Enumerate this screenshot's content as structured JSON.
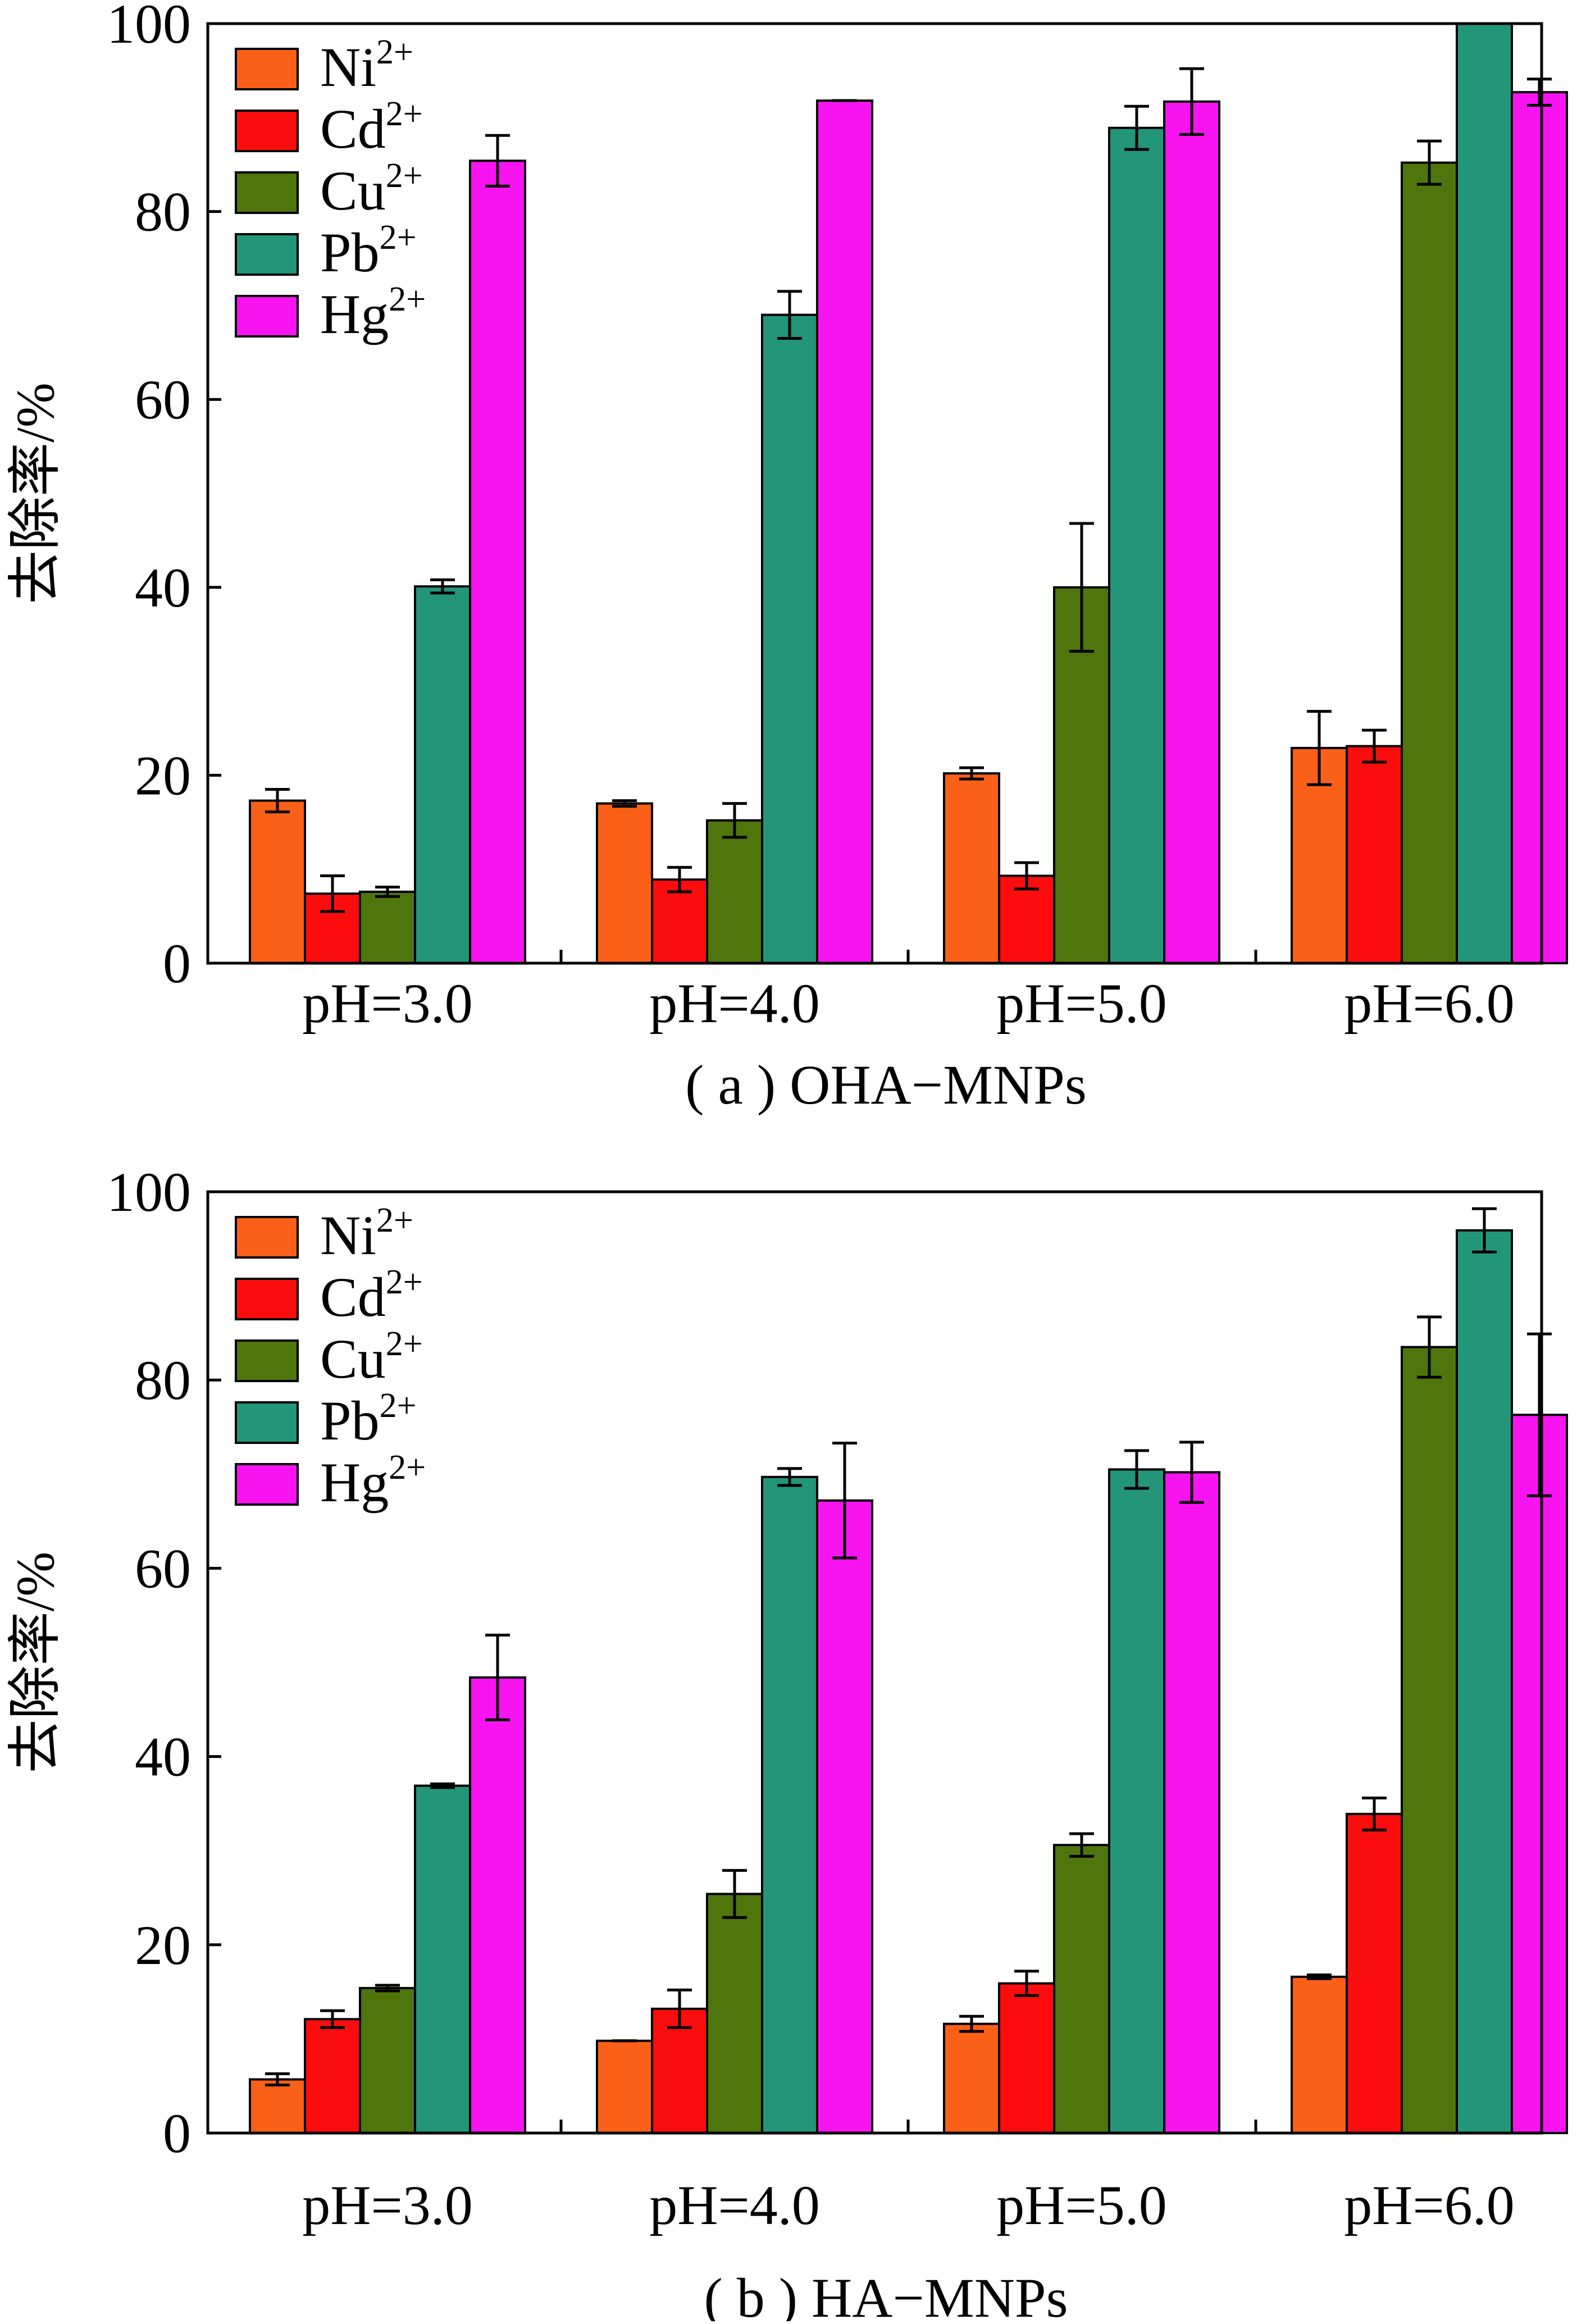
{
  "colors": {
    "Ni": "#fa6017",
    "Cd": "#fb0d0d",
    "Cu": "#4f760c",
    "Pb": "#23967a",
    "Hg": "#f714f0",
    "axis": "#000000"
  },
  "chart_data": [
    {
      "type": "bar",
      "caption": "( a ) OHA−MNPs",
      "ylabel": "去除率/%",
      "ylim": [
        0,
        100
      ],
      "yticks": [
        "0",
        "20",
        "40",
        "60",
        "80",
        "100"
      ],
      "categories": [
        "pH=3.0",
        "pH=4.0",
        "pH=5.0",
        "pH=6.0"
      ],
      "legend_position": "top-left",
      "series": [
        {
          "name": "Ni",
          "sup": "2+",
          "values": [
            17.3,
            17.0,
            20.2,
            22.9
          ],
          "errors": [
            1.2,
            0.3,
            0.6,
            3.9
          ]
        },
        {
          "name": "Cd",
          "sup": "2+",
          "values": [
            7.4,
            8.9,
            9.3,
            23.1
          ],
          "errors": [
            1.9,
            1.3,
            1.4,
            1.7
          ]
        },
        {
          "name": "Cu",
          "sup": "2+",
          "values": [
            7.6,
            15.2,
            40.0,
            85.2
          ],
          "errors": [
            0.5,
            1.8,
            6.8,
            2.3
          ]
        },
        {
          "name": "Pb",
          "sup": "2+",
          "values": [
            40.1,
            69.0,
            88.9,
            100.0
          ],
          "errors": [
            0.7,
            2.5,
            2.3,
            0.0
          ]
        },
        {
          "name": "Hg",
          "sup": "2+",
          "values": [
            85.4,
            91.8,
            91.7,
            92.7
          ],
          "errors": [
            2.7,
            0.0,
            3.5,
            1.4
          ]
        }
      ]
    },
    {
      "type": "bar",
      "caption": "( b ) HA−MNPs",
      "ylabel": "去除率/%",
      "ylim": [
        0,
        100
      ],
      "yticks": [
        "0",
        "20",
        "40",
        "60",
        "80",
        "100"
      ],
      "categories": [
        "pH=3.0",
        "pH=4.0",
        "pH=5.0",
        "pH=6.0"
      ],
      "legend_position": "top-left",
      "series": [
        {
          "name": "Ni",
          "sup": "2+",
          "values": [
            5.7,
            9.8,
            11.6,
            16.6
          ],
          "errors": [
            0.6,
            0.0,
            0.8,
            0.2
          ]
        },
        {
          "name": "Cd",
          "sup": "2+",
          "values": [
            12.1,
            13.2,
            15.9,
            33.9
          ],
          "errors": [
            0.9,
            2.0,
            1.3,
            1.7
          ]
        },
        {
          "name": "Cu",
          "sup": "2+",
          "values": [
            15.4,
            25.4,
            30.6,
            83.5
          ],
          "errors": [
            0.3,
            2.5,
            1.2,
            3.2
          ]
        },
        {
          "name": "Pb",
          "sup": "2+",
          "values": [
            36.9,
            69.7,
            70.5,
            95.9
          ],
          "errors": [
            0.2,
            0.9,
            2.0,
            2.3
          ]
        },
        {
          "name": "Hg",
          "sup": "2+",
          "values": [
            48.4,
            67.2,
            70.2,
            76.3
          ],
          "errors": [
            4.5,
            6.1,
            3.2,
            8.6
          ]
        }
      ]
    }
  ]
}
